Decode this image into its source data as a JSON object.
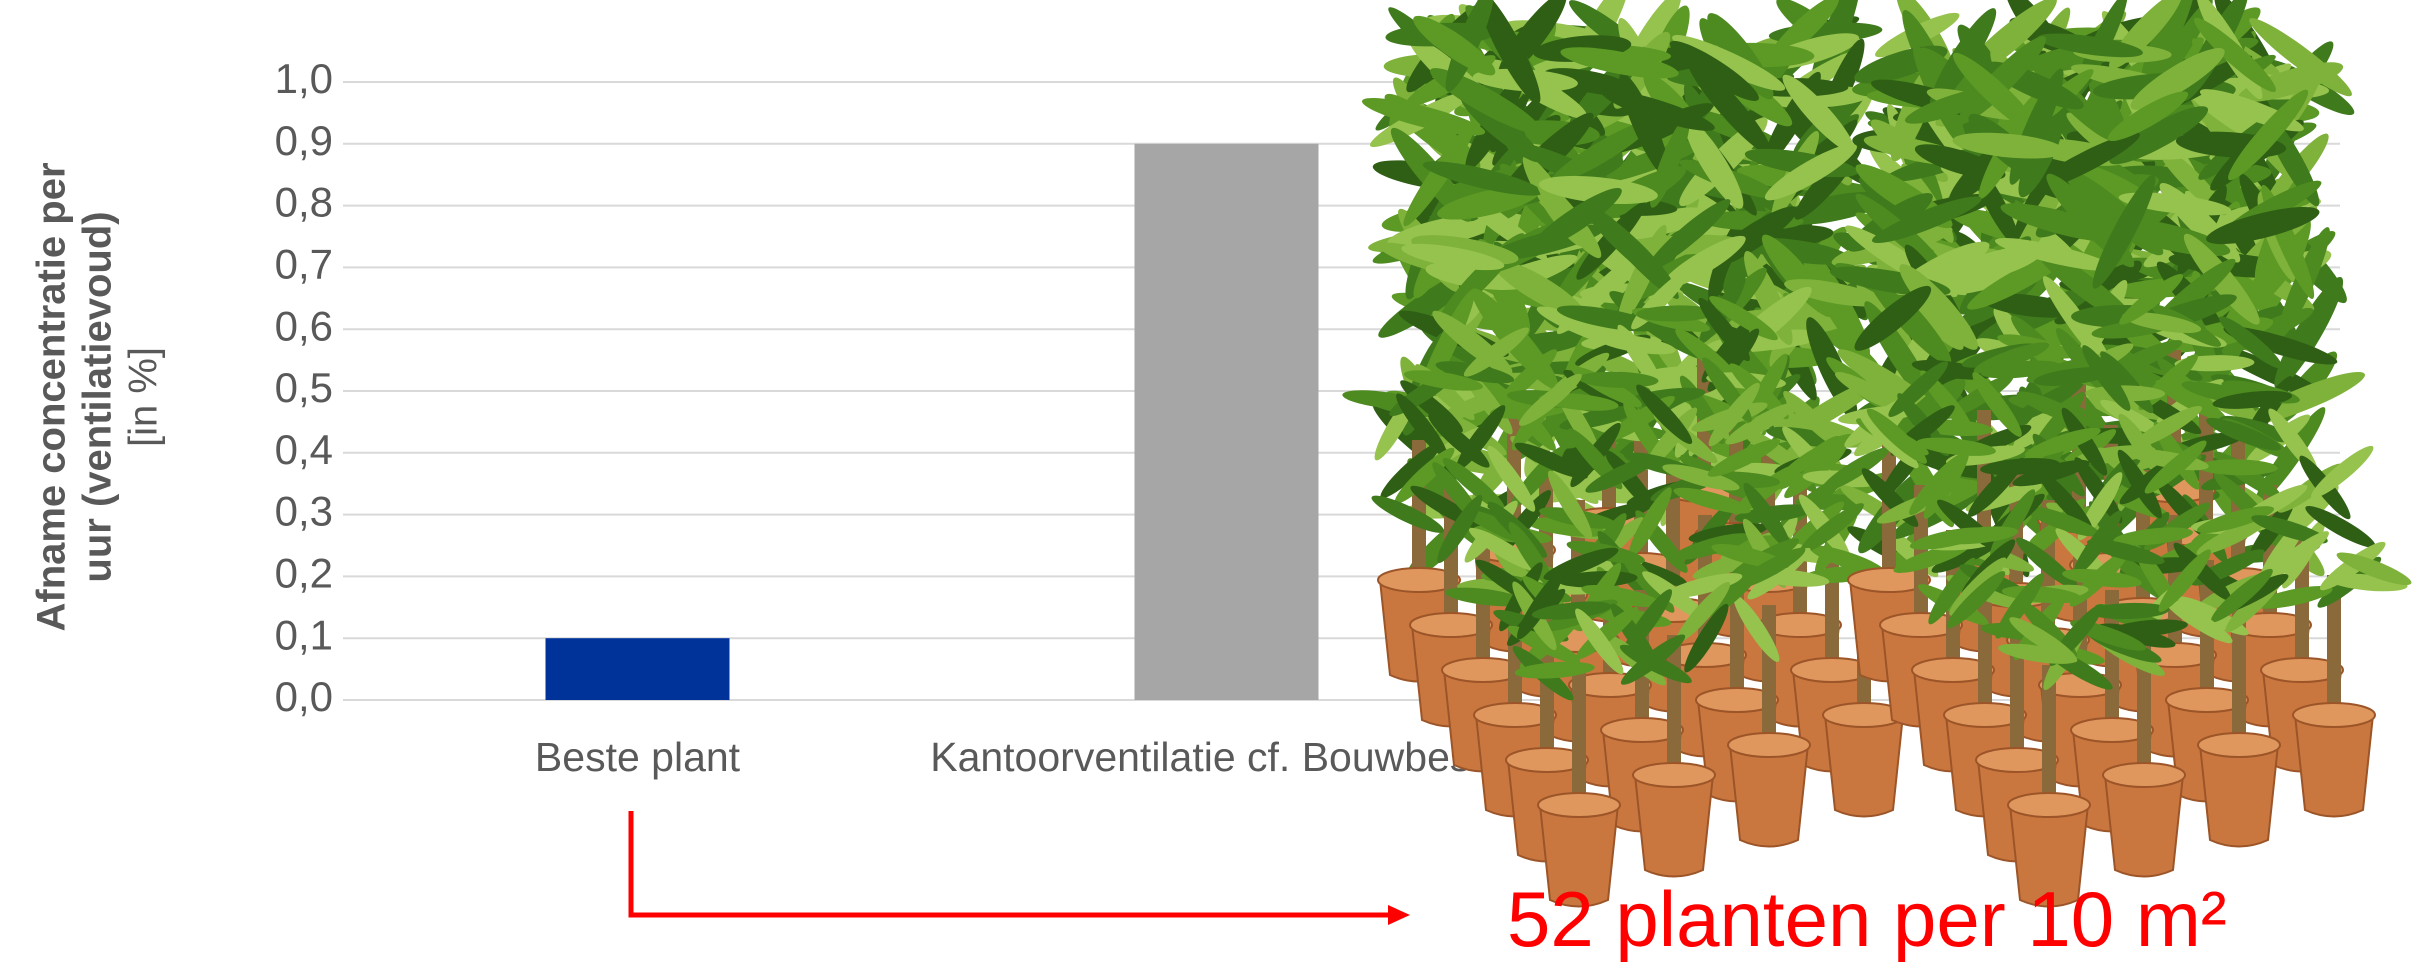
{
  "chart_data": {
    "type": "bar",
    "y_label": [
      "Afname concentratie per",
      "uur (ventilatievoud)"
    ],
    "y_unit": "[in %]",
    "categories": [
      "Beste plant",
      "Kantoorventilatie cf. Bouwbesluit"
    ],
    "values": [
      0.1,
      0.9
    ],
    "colors": [
      "#003399",
      "#a6a6a6"
    ],
    "ylim": [
      0,
      1
    ],
    "yticks": [
      {
        "value": 0,
        "label": "0,0"
      },
      {
        "value": 0.1,
        "label": "0,1"
      },
      {
        "value": 0.2,
        "label": "0,2"
      },
      {
        "value": 0.3,
        "label": "0,3"
      },
      {
        "value": 0.4,
        "label": "0,4"
      },
      {
        "value": 0.5,
        "label": "0,5"
      },
      {
        "value": 0.6,
        "label": "0,6"
      },
      {
        "value": 0.7,
        "label": "0,7"
      },
      {
        "value": 0.8,
        "label": "0,8"
      },
      {
        "value": 0.9,
        "label": "0,9"
      },
      {
        "value": 1,
        "label": "1,0"
      }
    ],
    "grid": true,
    "annotation": "52 planten per 10 m²"
  }
}
